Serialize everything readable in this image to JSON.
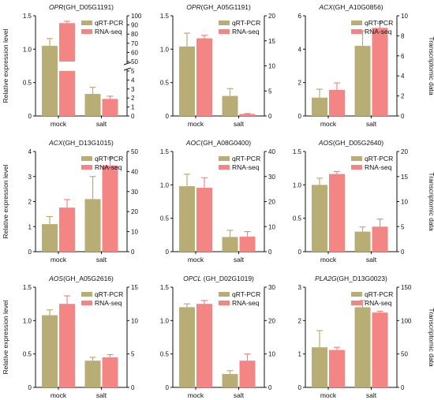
{
  "colors": {
    "qrt": "#b8ae75",
    "rna": "#f48585",
    "axis": "#111111"
  },
  "chart_data": [
    {
      "type": "bar",
      "title_gene": "OPR",
      "title_id": "(GH_D05G1191)",
      "categories": [
        "mock",
        "salt"
      ],
      "legend": [
        "qRT-PCR",
        "RNA-seq"
      ],
      "ylabel": "Relative expression level",
      "y2label": "",
      "ylim": [
        0,
        1.5
      ],
      "yticks": [
        "0",
        "0.5",
        "1.0",
        "1.5"
      ],
      "y2_broken": true,
      "y2ticks_upper": [
        "100",
        "90",
        "80",
        "70",
        "60",
        "50"
      ],
      "y2ticks_lower": [
        "5",
        "4",
        "3",
        "2",
        "1",
        "0"
      ],
      "series": [
        {
          "name": "qRT-PCR",
          "values": [
            1.05,
            0.33
          ],
          "errors": [
            0.11,
            0.1
          ]
        },
        {
          "name": "RNA-seq",
          "values": [
            92,
            1.9
          ],
          "errors": [
            2,
            0.3
          ]
        }
      ]
    },
    {
      "type": "bar",
      "title_gene": "OPR",
      "title_id": "(GH_A05G1191)",
      "categories": [
        "mock",
        "salt"
      ],
      "legend": [
        "qRT-PCR",
        "RNA-seq"
      ],
      "ylabel": "",
      "y2label": "",
      "ylim": [
        0,
        1.5
      ],
      "yticks": [
        "0",
        "0.5",
        "1.0",
        "1.5"
      ],
      "y2lim": [
        0,
        20
      ],
      "y2ticks": [
        "0",
        "5",
        "10",
        "15",
        "20"
      ],
      "series": [
        {
          "name": "qRT-PCR",
          "values": [
            1.04,
            0.3
          ],
          "errors": [
            0.2,
            0.11
          ]
        },
        {
          "name": "RNA-seq",
          "values": [
            15.5,
            0.4
          ],
          "errors": [
            0.6,
            0.1
          ]
        }
      ]
    },
    {
      "type": "bar",
      "title_gene": "ACX",
      "title_id": "(GH_A10G0856)",
      "categories": [
        "mock",
        "salt"
      ],
      "legend": [
        "qRT-PCR",
        "RNA-seq"
      ],
      "ylabel": "",
      "y2label": "Transcriptomic data",
      "ylim": [
        0,
        6
      ],
      "yticks": [
        "0",
        "2",
        "4",
        "6"
      ],
      "y2lim": [
        0,
        10
      ],
      "y2ticks": [
        "0",
        "2",
        "4",
        "6",
        "8",
        "10"
      ],
      "series": [
        {
          "name": "qRT-PCR",
          "values": [
            1.1,
            4.2
          ],
          "errors": [
            0.5,
            0.9
          ]
        },
        {
          "name": "RNA-seq",
          "values": [
            2.6,
            8.8
          ],
          "errors": [
            0.7,
            0.6
          ]
        }
      ]
    },
    {
      "type": "bar",
      "title_gene": "ACX",
      "title_id": "(GH_D13G1015)",
      "categories": [
        "mock",
        "salt"
      ],
      "legend": [
        "qRT-PCR",
        "RNA-seq"
      ],
      "ylabel": "Relative expression level",
      "y2label": "",
      "ylim": [
        0,
        4
      ],
      "yticks": [
        "0",
        "1",
        "2",
        "3",
        "4"
      ],
      "y2lim": [
        0,
        50
      ],
      "y2ticks": [
        "0",
        "10",
        "20",
        "30",
        "40",
        "50"
      ],
      "series": [
        {
          "name": "qRT-PCR",
          "values": [
            1.1,
            2.1
          ],
          "errors": [
            0.3,
            0.9
          ]
        },
        {
          "name": "RNA-seq",
          "values": [
            22,
            43
          ],
          "errors": [
            4,
            4
          ]
        }
      ]
    },
    {
      "type": "bar",
      "title_gene": "AOC",
      "title_id": "(GH_A08G0400)",
      "categories": [
        "mock",
        "salt"
      ],
      "legend": [
        "qRT-PCR",
        "RNA-seq"
      ],
      "ylabel": "",
      "y2label": "",
      "ylim": [
        0,
        1.5
      ],
      "yticks": [
        "0",
        "0.5",
        "1.0",
        "1.5"
      ],
      "y2lim": [
        0,
        40
      ],
      "y2ticks": [
        "0",
        "10",
        "20",
        "30",
        "40"
      ],
      "series": [
        {
          "name": "qRT-PCR",
          "values": [
            0.98,
            0.22
          ],
          "errors": [
            0.18,
            0.1
          ]
        },
        {
          "name": "RNA-seq",
          "values": [
            25.5,
            6
          ],
          "errors": [
            4,
            2
          ]
        }
      ]
    },
    {
      "type": "bar",
      "title_gene": "AOS",
      "title_id": "(GH_D05G2640)",
      "categories": [
        "mock",
        "salt"
      ],
      "legend": [
        "qRT-PCR",
        "RNA-seq"
      ],
      "ylabel": "",
      "y2label": "Transcriptomic data",
      "ylim": [
        0,
        1.5
      ],
      "yticks": [
        "0",
        "0.5",
        "1.0",
        "1.5"
      ],
      "y2lim": [
        0,
        20
      ],
      "y2ticks": [
        "0",
        "5",
        "10",
        "15",
        "20"
      ],
      "series": [
        {
          "name": "qRT-PCR",
          "values": [
            1.0,
            0.3
          ],
          "errors": [
            0.1,
            0.07
          ]
        },
        {
          "name": "RNA-seq",
          "values": [
            15.5,
            5
          ],
          "errors": [
            0.5,
            1.5
          ]
        }
      ]
    },
    {
      "type": "bar",
      "title_gene": "AOS",
      "title_id": "(GH_A05G2616)",
      "categories": [
        "mock",
        "salt"
      ],
      "legend": [
        "qRT-PCR",
        "RNA-seq"
      ],
      "ylabel": "Relative expression level",
      "y2label": "",
      "ylim": [
        0,
        1.5
      ],
      "yticks": [
        "0",
        "0.5",
        "1.0",
        "1.5"
      ],
      "y2lim": [
        0,
        15
      ],
      "y2ticks": [
        "0",
        "5",
        "10",
        "15"
      ],
      "series": [
        {
          "name": "qRT-PCR",
          "values": [
            1.08,
            0.4
          ],
          "errors": [
            0.08,
            0.05
          ]
        },
        {
          "name": "RNA-seq",
          "values": [
            12.5,
            4.5
          ],
          "errors": [
            1.2,
            0.4
          ]
        }
      ]
    },
    {
      "type": "bar",
      "title_gene": "OPCL",
      "title_id": "  (GH_D02G1019)",
      "categories": [
        "mock",
        "salt"
      ],
      "legend": [
        "qRT-PCR",
        "RNA-seq"
      ],
      "ylabel": "",
      "y2label": "",
      "ylim": [
        0,
        1.5
      ],
      "yticks": [
        "0",
        "0.5",
        "1.0",
        "1.5"
      ],
      "y2lim": [
        0,
        30
      ],
      "y2ticks": [
        "0",
        "10",
        "20",
        "30"
      ],
      "series": [
        {
          "name": "qRT-PCR",
          "values": [
            1.2,
            0.2
          ],
          "errors": [
            0.05,
            0.05
          ]
        },
        {
          "name": "RNA-seq",
          "values": [
            25,
            8
          ],
          "errors": [
            1,
            2
          ]
        }
      ]
    },
    {
      "type": "bar",
      "title_gene": "PLA2G",
      "title_id": "(GH_D13G0023)",
      "categories": [
        "mock",
        "salt"
      ],
      "legend": [
        "qRT-PCR",
        "RNA-seq"
      ],
      "ylabel": "",
      "y2label": "Transcriptomic data",
      "ylim": [
        0,
        3
      ],
      "yticks": [
        "0",
        "1",
        "2",
        "3"
      ],
      "y2lim": [
        0,
        150
      ],
      "y2ticks": [
        "0",
        "50",
        "100",
        "150"
      ],
      "series": [
        {
          "name": "qRT-PCR",
          "values": [
            1.2,
            2.4
          ],
          "errors": [
            0.5,
            0.2
          ]
        },
        {
          "name": "RNA-seq",
          "values": [
            56,
            112
          ],
          "errors": [
            4,
            2
          ]
        }
      ]
    }
  ]
}
